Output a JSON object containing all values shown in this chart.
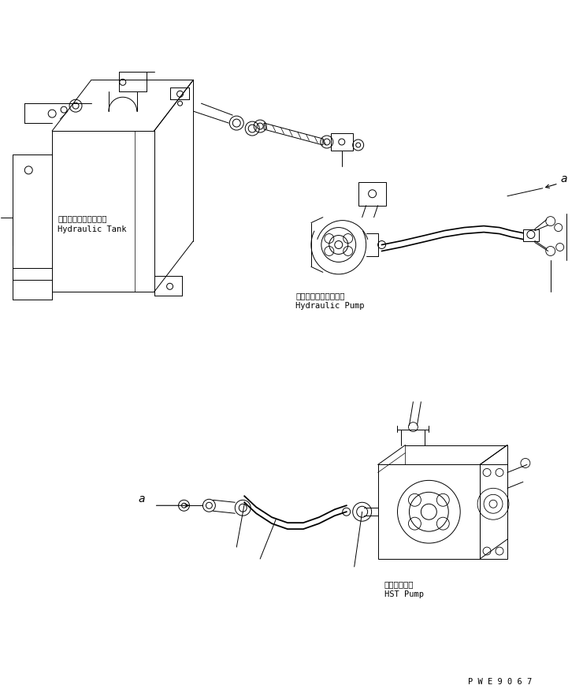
{
  "background_color": "#ffffff",
  "line_color": "#000000",
  "figure_width": 7.4,
  "figure_height": 8.88,
  "dpi": 100,
  "watermark": "P W E 9 0 6 7",
  "labels": {
    "hydraulic_tank_jp": "ハイドロリックタンク",
    "hydraulic_tank_en": "Hydraulic Tank",
    "hydraulic_pump_jp": "ハイドロリックポンプ",
    "hydraulic_pump_en": "Hydraulic Pump",
    "hst_pump_jp": "ＨＳＴポンプ",
    "hst_pump_en": "HST Pump",
    "label_a": "a"
  }
}
